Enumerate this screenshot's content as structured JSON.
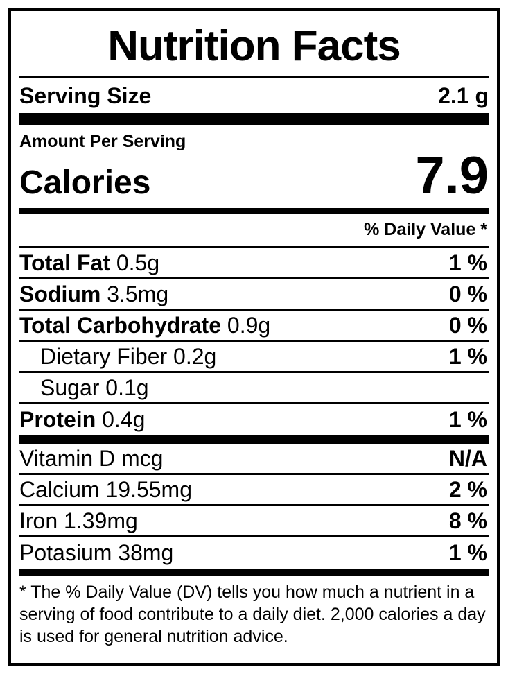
{
  "label": {
    "title": "Nutrition Facts",
    "serving_size_label": "Serving Size",
    "serving_size_value": "2.1 g",
    "amount_per_serving": "Amount Per Serving",
    "calories_label": "Calories",
    "calories_value": "7.9",
    "daily_value_header": "% Daily Value *",
    "nutrient_rows": [
      {
        "bold": "Total Fat",
        "rest": " 0.5g",
        "value": "1 %",
        "indent": false
      },
      {
        "bold": "Sodium",
        "rest": " 3.5mg",
        "value": "0 %",
        "indent": false
      },
      {
        "bold": "Total Carbohydrate",
        "rest": " 0.9g",
        "value": "0 %",
        "indent": false
      },
      {
        "bold": "",
        "rest": "Dietary Fiber 0.2g",
        "value": "1 %",
        "indent": true
      },
      {
        "bold": "",
        "rest": "Sugar 0.1g",
        "value": "",
        "indent": true
      },
      {
        "bold": "Protein",
        "rest": " 0.4g",
        "value": "1 %",
        "indent": false
      }
    ],
    "vitamin_rows": [
      {
        "bold": "",
        "rest": "Vitamin D mcg",
        "value": "N/A",
        "indent": false
      },
      {
        "bold": "",
        "rest": "Calcium 19.55mg",
        "value": "2 %",
        "indent": false
      },
      {
        "bold": "",
        "rest": "Iron 1.39mg",
        "value": "8 %",
        "indent": false
      },
      {
        "bold": "",
        "rest": "Potasium 38mg",
        "value": "1 %",
        "indent": false
      }
    ],
    "footnote": "* The % Daily Value (DV) tells you how much a nutrient in a serving of food contribute to a daily diet. 2,000 calories a day is used for general nutrition advice.",
    "colors": {
      "text": "#000000",
      "lines": "#000000",
      "background": "#ffffff"
    }
  }
}
